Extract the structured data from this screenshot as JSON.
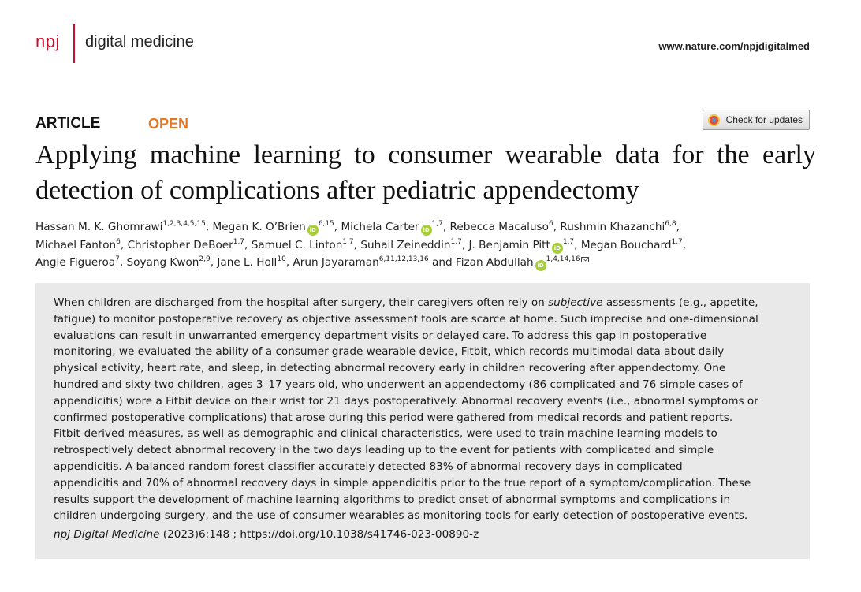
{
  "header": {
    "logo_prefix": "npj",
    "journal_name": "digital medicine",
    "site_url": "www.nature.com/npjdigitalmed"
  },
  "article": {
    "type": "ARTICLE",
    "access": "OPEN",
    "check_updates_label": "Check for updates",
    "title": "Applying machine learning to consumer wearable data for the early detection of complications after pediatric appendectomy"
  },
  "authors": [
    {
      "name": "Hassan M. K. Ghomrawi",
      "aff": "1,2,3,4,5,15",
      "orcid": false
    },
    {
      "name": "Megan K. O’Brien",
      "aff": "6,15",
      "orcid": true
    },
    {
      "name": "Michela Carter",
      "aff": "1,7",
      "orcid": true
    },
    {
      "name": "Rebecca Macaluso",
      "aff": "6",
      "orcid": false
    },
    {
      "name": "Rushmin Khazanchi",
      "aff": "6,8",
      "orcid": false
    },
    {
      "name": "Michael Fanton",
      "aff": "6",
      "orcid": false
    },
    {
      "name": "Christopher DeBoer",
      "aff": "1,7",
      "orcid": false
    },
    {
      "name": "Samuel C. Linton",
      "aff": "1,7",
      "orcid": false
    },
    {
      "name": "Suhail Zeineddin",
      "aff": "1,7",
      "orcid": false
    },
    {
      "name": "J. Benjamin Pitt",
      "aff": "1,7",
      "orcid": true
    },
    {
      "name": "Megan Bouchard",
      "aff": "1,7",
      "orcid": false
    },
    {
      "name": "Angie Figueroa",
      "aff": "7",
      "orcid": false
    },
    {
      "name": "Soyang Kwon",
      "aff": "2,9",
      "orcid": false
    },
    {
      "name": "Jane L. Holl",
      "aff": "10",
      "orcid": false
    },
    {
      "name": "Arun Jayaraman",
      "aff": "6,11,12,13,16",
      "orcid": false
    },
    {
      "name": "Fizan Abdullah",
      "aff": "1,4,14,16",
      "orcid": true
    }
  ],
  "author_lines": [
    [
      0,
      1,
      2,
      3,
      4
    ],
    [
      5,
      6,
      7,
      8,
      9,
      10
    ],
    [
      11,
      12,
      13,
      14,
      15
    ]
  ],
  "author_connector": "and",
  "abstract": {
    "lines": [
      {
        "before": "When children are discharged from the hospital after surgery, their caregivers often rely on ",
        "em": "subjective",
        "after": " assessments (e.g., appetite,"
      },
      {
        "before": "fatigue) to monitor postoperative recovery as objective assessment tools are scarce at home. Such imprecise and one-dimensional"
      },
      {
        "before": "evaluations can result in unwarranted emergency department visits or delayed care. To address this gap in postoperative"
      },
      {
        "before": "monitoring, we evaluated the ability of a consumer-grade wearable device, Fitbit, which records multimodal data about daily"
      },
      {
        "before": "physical activity, heart rate, and sleep, in detecting abnormal recovery early in children recovering after appendectomy. One"
      },
      {
        "before": "hundred and sixty-two children, ages 3–17 years old, who underwent an appendectomy (86 complicated and 76 simple cases of"
      },
      {
        "before": "appendicitis) wore a Fitbit device on their wrist for 21 days postoperatively. Abnormal recovery events (i.e., abnormal symptoms or"
      },
      {
        "before": "confirmed postoperative complications) that arose during this period were gathered from medical records and patient reports."
      },
      {
        "before": "Fitbit-derived measures, as well as demographic and clinical characteristics, were used to train machine learning models to"
      },
      {
        "before": "retrospectively detect abnormal recovery in the two days leading up to the event for patients with complicated and simple"
      },
      {
        "before": "appendicitis. A balanced random forest classifier accurately detected 83% of abnormal recovery days in complicated"
      },
      {
        "before": "appendicitis and 70% of abnormal recovery days in simple appendicitis prior to the true report of a symptom/complication. These"
      },
      {
        "before": "results support the development of machine learning algorithms to predict onset of abnormal symptoms and complications in"
      },
      {
        "before": "children undergoing surgery, and the use of consumer wearables as monitoring tools for early detection of postoperative events."
      }
    ]
  },
  "citation": {
    "journal": "npj Digital Medicine",
    "details": " (2023)6:148 ; https://doi.org/10.1038/s41746-023-00890-z"
  },
  "icons": {
    "orcid_glyph": "iD",
    "colors": {
      "brand": "#c8102e",
      "open": "#e87722",
      "orcid": "#a6ce39",
      "abstract_bg": "#e9e9e9"
    }
  }
}
